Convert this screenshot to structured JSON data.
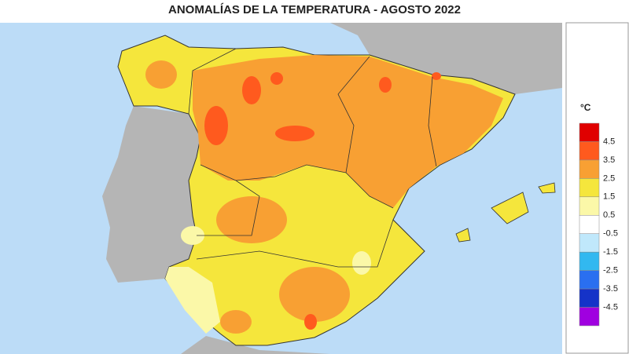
{
  "header": {
    "title": "ANOMALÍAS DE LA TEMPERATURA - AGOSTO 2022"
  },
  "legend": {
    "unit": "°C",
    "colors": [
      "#e00000",
      "#ff5a1e",
      "#f8a033",
      "#f5e63c",
      "#fbf8a8",
      "#ffffff",
      "#c0e8fb",
      "#32b8f0",
      "#2a6ff0",
      "#1533c8",
      "#a000e0"
    ],
    "ticks": [
      4.5,
      3.5,
      2.5,
      1.5,
      0.5,
      -0.5,
      -1.5,
      -2.5,
      -3.5,
      -4.5
    ]
  }
}
